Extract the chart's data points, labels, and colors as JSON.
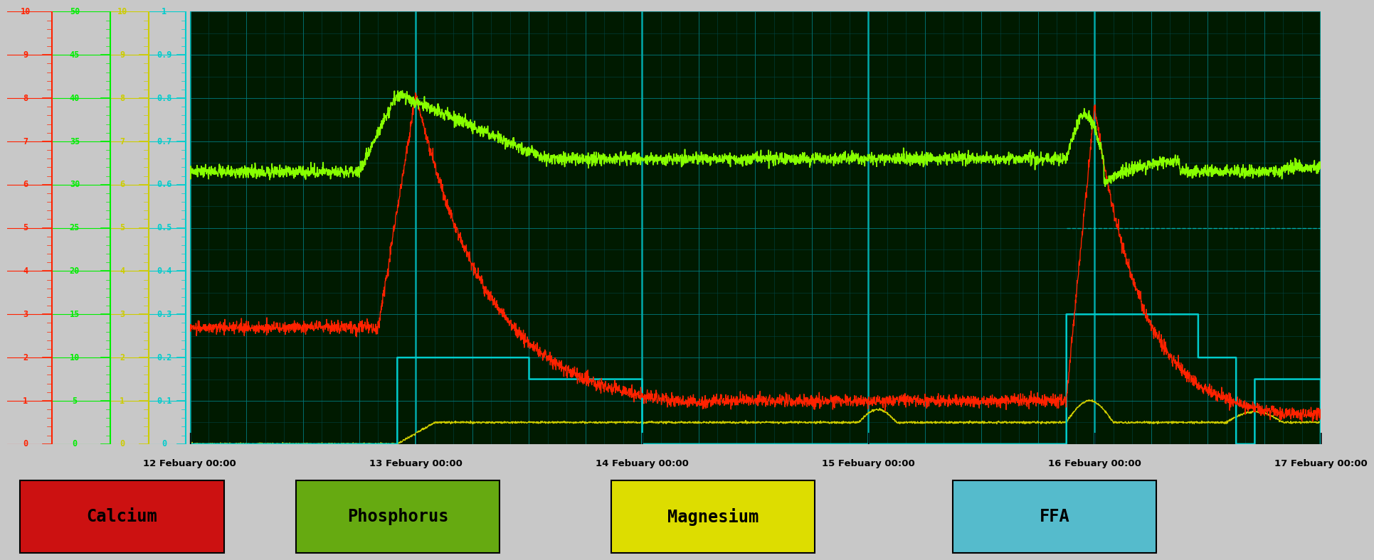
{
  "outer_bg": "#c8c8c8",
  "plot_bg": "#001a00",
  "left_bg": "#000000",
  "grid_minor_color": "#004444",
  "grid_major_color": "#007777",
  "grid_day_color": "#00aaaa",
  "date_labels": [
    "12 Febuary 00:00",
    "13 Febuary 00:00",
    "14 Febuary 00:00",
    "15 Febuary 00:00",
    "16 Febuary 00:00",
    "17 Febuary 00:00"
  ],
  "legend_items": [
    {
      "label": "Calcium",
      "bg": "#cc1111",
      "text_color": "#000000"
    },
    {
      "label": "Phosphorus",
      "bg": "#66aa11",
      "text_color": "#000000"
    },
    {
      "label": "Magnesium",
      "bg": "#dddd00",
      "text_color": "#000000"
    },
    {
      "label": "FFA",
      "bg": "#55bbcc",
      "text_color": "#000000"
    }
  ],
  "scale_red": {
    "min": 0,
    "max": 10,
    "ticks": [
      0,
      1,
      2,
      3,
      4,
      5,
      6,
      7,
      8,
      9,
      10
    ],
    "color": "#ff2200"
  },
  "scale_green": {
    "min": 0,
    "max": 50,
    "ticks": [
      0,
      5,
      10,
      15,
      20,
      25,
      30,
      35,
      40,
      45,
      50
    ],
    "color": "#00ee00"
  },
  "scale_yellow": {
    "min": 0,
    "max": 10,
    "ticks": [
      0,
      1,
      2,
      3,
      4,
      5,
      6,
      7,
      8,
      9,
      10
    ],
    "color": "#cccc00"
  },
  "scale_cyan": {
    "min": 0,
    "max": 1,
    "ticks": [
      0,
      0.1,
      0.2,
      0.3,
      0.4,
      0.5,
      0.6,
      0.7,
      0.8,
      0.9,
      1.0
    ],
    "color": "#00cccc"
  },
  "line_ca": "#ff2200",
  "line_ph": "#88ff00",
  "line_mg": "#cccc00",
  "line_ffa": "#00cccc"
}
